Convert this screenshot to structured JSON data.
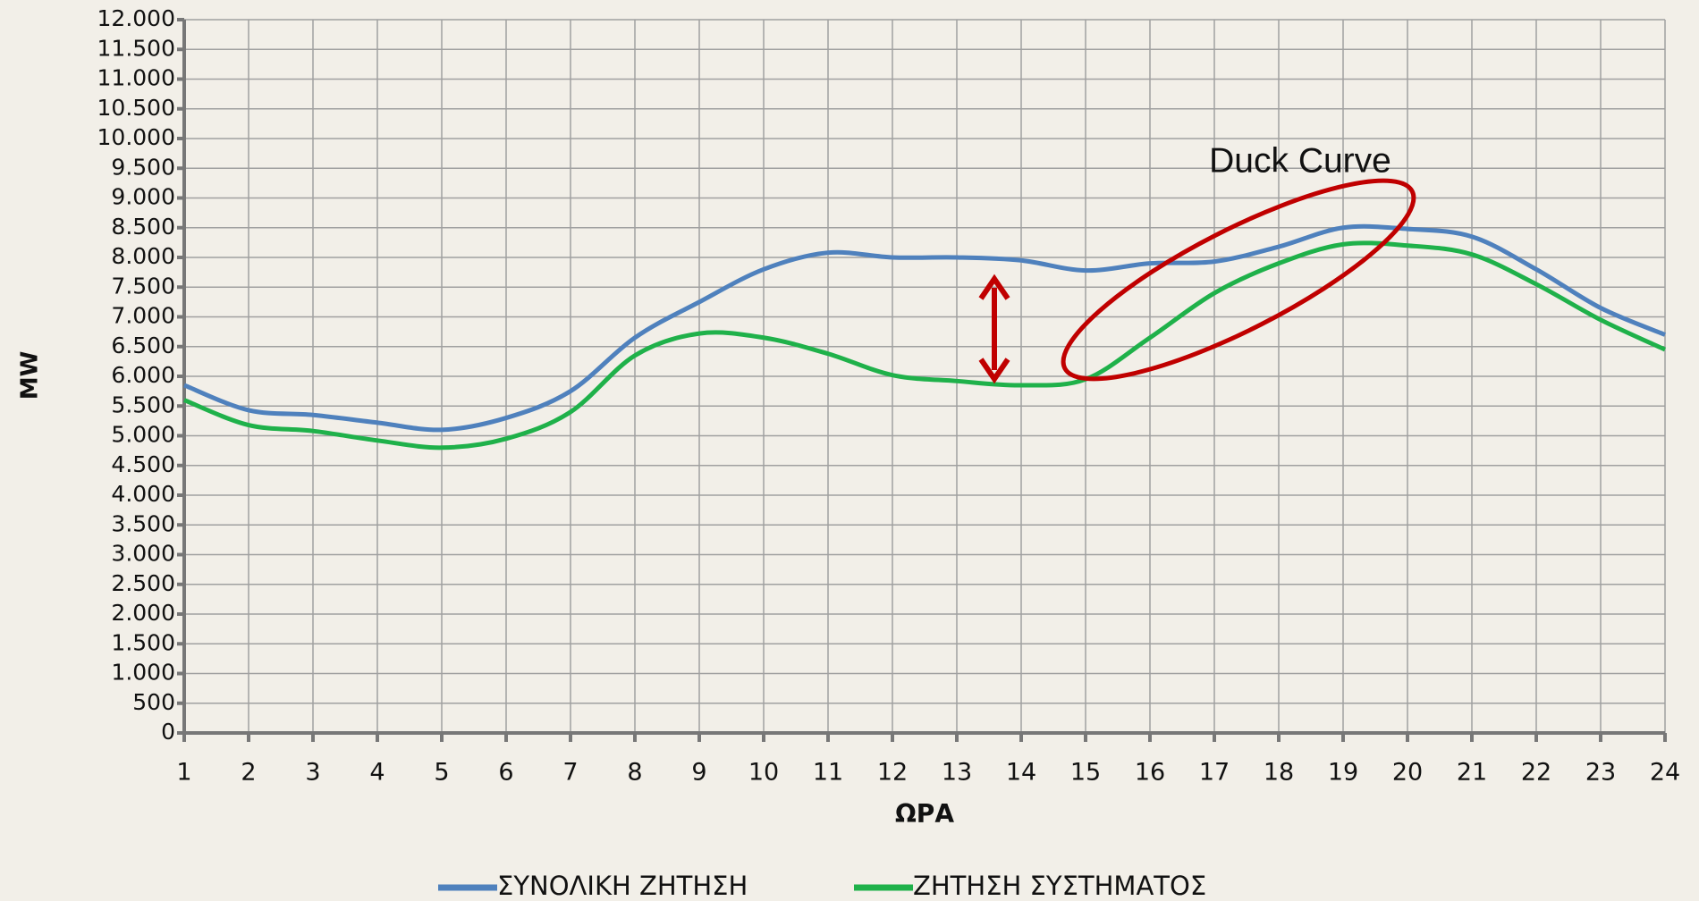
{
  "chart_data": {
    "type": "line",
    "x_label": "ΩΡΑ",
    "y_label": "MW",
    "annotation": "Duck Curve",
    "x": [
      1,
      2,
      3,
      4,
      5,
      6,
      7,
      8,
      9,
      10,
      11,
      12,
      13,
      14,
      15,
      16,
      17,
      18,
      19,
      20,
      21,
      22,
      23,
      24
    ],
    "xlim": [
      1,
      24
    ],
    "xticks": [
      1,
      2,
      3,
      4,
      5,
      6,
      7,
      8,
      9,
      10,
      11,
      12,
      13,
      14,
      15,
      16,
      17,
      18,
      19,
      20,
      21,
      22,
      23,
      24
    ],
    "ylim": [
      0,
      12000
    ],
    "yticks": [
      0,
      500,
      {
        "value": 1000,
        "label": "1.000"
      },
      {
        "value": 1500,
        "label": "1.500"
      },
      {
        "value": 2000,
        "label": "2.000"
      },
      {
        "value": 2500,
        "label": "2.500"
      },
      {
        "value": 3000,
        "label": "3.000"
      },
      {
        "value": 3500,
        "label": "3.500"
      },
      {
        "value": 4000,
        "label": "4.000"
      },
      {
        "value": 4500,
        "label": "4.500"
      },
      {
        "value": 5000,
        "label": "5.000"
      },
      {
        "value": 5500,
        "label": "5.500"
      },
      {
        "value": 6000,
        "label": "6.000"
      },
      {
        "value": 6500,
        "label": "6.500"
      },
      {
        "value": 7000,
        "label": "7.000"
      },
      {
        "value": 7500,
        "label": "7.500"
      },
      {
        "value": 8000,
        "label": "8.000"
      },
      {
        "value": 8500,
        "label": "8.500"
      },
      {
        "value": 9000,
        "label": "9.000"
      },
      {
        "value": 9500,
        "label": "9.500"
      },
      {
        "value": 10000,
        "label": "10.000"
      },
      {
        "value": 10500,
        "label": "10.500"
      },
      {
        "value": 11000,
        "label": "11.000"
      },
      {
        "value": 11500,
        "label": "11.500"
      },
      {
        "value": 12000,
        "label": "12.000"
      }
    ],
    "grid": true,
    "series": [
      {
        "name": "ΣΥΝΟΛΙΚΗ ΖΗΤΗΣΗ",
        "color": "#4f81bd",
        "values": [
          5850,
          5430,
          5350,
          5220,
          5100,
          5300,
          5750,
          6650,
          7250,
          7800,
          8080,
          8000,
          8000,
          7950,
          7780,
          7900,
          7930,
          8180,
          8500,
          8480,
          8350,
          7800,
          7150,
          6700
        ]
      },
      {
        "name": "ΖΗΤΗΣΗ ΣΥΣΤΗΜΑΤΟΣ",
        "color": "#1fb14a",
        "values": [
          5600,
          5180,
          5080,
          4920,
          4800,
          4950,
          5400,
          6350,
          6720,
          6650,
          6380,
          6020,
          5920,
          5850,
          5950,
          6650,
          7400,
          7900,
          8220,
          8200,
          8050,
          7550,
          6950,
          6450
        ]
      }
    ]
  }
}
